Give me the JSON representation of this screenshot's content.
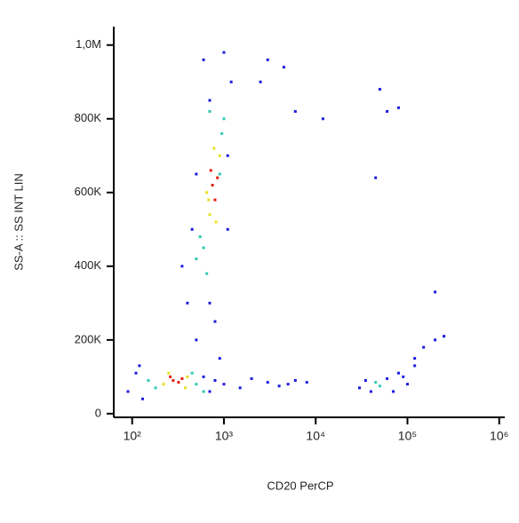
{
  "chart_data": {
    "type": "scatter",
    "x_label": "CD20 PerCP",
    "y_label": "SS-A :: SS INT LIN",
    "xlog": true,
    "xlim": [
      63,
      1150000
    ],
    "ylim": [
      -10000,
      1050000
    ],
    "xticks": [
      {
        "value": 100,
        "label": "10²"
      },
      {
        "value": 1000,
        "label": "10³"
      },
      {
        "value": 10000,
        "label": "10⁴"
      },
      {
        "value": 100000,
        "label": "10⁵"
      },
      {
        "value": 1000000,
        "label": "10⁶"
      }
    ],
    "yticks": [
      0,
      {
        "value": 200000,
        "label": "200K"
      },
      {
        "value": 400000,
        "label": "400K"
      },
      {
        "value": 600000,
        "label": "600K"
      },
      {
        "value": 800000,
        "label": "800K"
      },
      {
        "value": 1000000,
        "label": "1,0M"
      }
    ],
    "series": [
      {
        "color": "#1c1ce0",
        "x": [
          90,
          110,
          130,
          120,
          600,
          700,
          800,
          1000,
          1500,
          2000,
          3000,
          4000,
          5000,
          6000,
          8000,
          400,
          450,
          350,
          500,
          1100,
          1200,
          1000,
          600,
          700,
          500,
          800,
          900,
          1100,
          700,
          30000,
          35000,
          40000,
          60000,
          70000,
          80000,
          100000,
          120000,
          150000,
          200000,
          250000,
          90000,
          120000,
          2500,
          3000,
          4500,
          6000,
          12000,
          50000,
          60000,
          80000,
          45000,
          200000
        ],
        "values": [
          60000,
          110000,
          40000,
          130000,
          100000,
          60000,
          90000,
          80000,
          70000,
          95000,
          85000,
          75000,
          80000,
          90000,
          85000,
          300000,
          500000,
          400000,
          200000,
          700000,
          900000,
          980000,
          960000,
          300000,
          650000,
          250000,
          150000,
          500000,
          850000,
          70000,
          90000,
          60000,
          95000,
          60000,
          110000,
          80000,
          130000,
          180000,
          200000,
          210000,
          100000,
          150000,
          900000,
          960000,
          940000,
          820000,
          800000,
          880000,
          820000,
          830000,
          640000,
          330000
        ]
      },
      {
        "color": "#30c8b0",
        "x": [
          150,
          500,
          180,
          450,
          600,
          600,
          1000,
          550,
          950,
          700,
          900,
          500,
          650,
          50000,
          45000
        ],
        "values": [
          90000,
          80000,
          70000,
          110000,
          60000,
          450000,
          800000,
          480000,
          760000,
          820000,
          650000,
          420000,
          380000,
          75000,
          85000
        ]
      },
      {
        "color": "#e8e020",
        "x": [
          220,
          400,
          250,
          380,
          700,
          900,
          650,
          820,
          780,
          680
        ],
        "values": [
          80000,
          100000,
          110000,
          70000,
          540000,
          700000,
          600000,
          520000,
          720000,
          580000
        ]
      },
      {
        "color": "#e02010",
        "x": [
          280,
          320,
          350,
          260,
          750,
          800,
          720,
          850
        ],
        "values": [
          90000,
          85000,
          95000,
          100000,
          620000,
          580000,
          660000,
          640000
        ]
      }
    ]
  }
}
